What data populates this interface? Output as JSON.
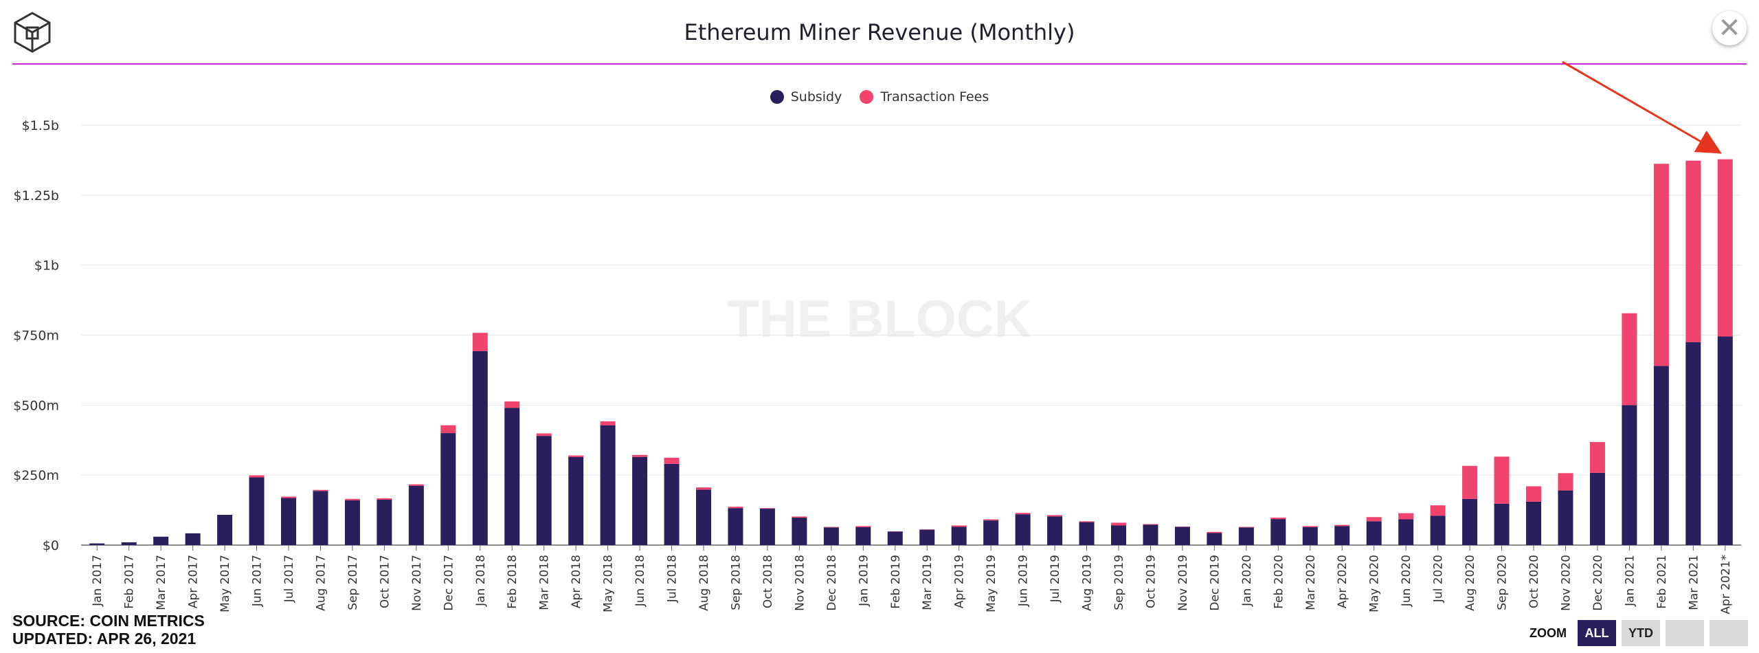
{
  "header": {
    "title": "Ethereum Miner Revenue (Monthly)",
    "close_symbol": "✕"
  },
  "colors": {
    "subsidy": "#2a1f5c",
    "fees": "#f0446e",
    "divider": "#c42ad8",
    "arrow": "#e8351f",
    "watermark": "#f0f0f0"
  },
  "watermark": "THE BLOCK",
  "footer": {
    "source": "SOURCE: COIN METRICS",
    "updated": "UPDATED: APR 26, 2021"
  },
  "zoom": {
    "label": "ZOOM",
    "buttons": [
      "ALL",
      "YTD",
      "",
      ""
    ],
    "active": "ALL"
  },
  "chart_data": {
    "type": "bar",
    "stacked": true,
    "title": "Ethereum Miner Revenue (Monthly)",
    "ylim": [
      0,
      1500
    ],
    "y_unit": "millions USD",
    "y_ticks": [
      0,
      250,
      500,
      750,
      1000,
      1250,
      1500
    ],
    "y_tick_labels": [
      "$0",
      "$250m",
      "$500m",
      "$750m",
      "$1b",
      "$1.25b",
      "$1.5b"
    ],
    "grid": true,
    "legend_position": "top-center",
    "categories": [
      "Jan 2017",
      "Feb 2017",
      "Mar 2017",
      "Apr 2017",
      "May 2017",
      "Jun 2017",
      "Jul 2017",
      "Aug 2017",
      "Sep 2017",
      "Oct 2017",
      "Nov 2017",
      "Dec 2017",
      "Jan 2018",
      "Feb 2018",
      "Mar 2018",
      "Apr 2018",
      "May 2018",
      "Jun 2018",
      "Jul 2018",
      "Aug 2018",
      "Sep 2018",
      "Oct 2018",
      "Nov 2018",
      "Dec 2018",
      "Jan 2019",
      "Feb 2019",
      "Mar 2019",
      "Apr 2019",
      "May 2019",
      "Jun 2019",
      "Jul 2019",
      "Aug 2019",
      "Sep 2019",
      "Oct 2019",
      "Nov 2019",
      "Dec 2019",
      "Jan 2020",
      "Feb 2020",
      "Mar 2020",
      "Apr 2020",
      "May 2020",
      "Jun 2020",
      "Jul 2020",
      "Aug 2020",
      "Sep 2020",
      "Oct 2020",
      "Nov 2020",
      "Dec 2020",
      "Jan 2021",
      "Feb 2021",
      "Mar 2021",
      "Apr 2021*"
    ],
    "series": [
      {
        "name": "Subsidy",
        "values": [
          6,
          10,
          30,
          42,
          108,
          242,
          168,
          193,
          160,
          162,
          212,
          400,
          693,
          490,
          390,
          315,
          428,
          315,
          290,
          198,
          132,
          130,
          98,
          63,
          64,
          48,
          55,
          65,
          88,
          110,
          102,
          82,
          70,
          73,
          65,
          43,
          63,
          93,
          64,
          68,
          85,
          92,
          105,
          165,
          148,
          155,
          195,
          258,
          500,
          640,
          725,
          745
        ]
      },
      {
        "name": "Transaction Fees",
        "values": [
          0,
          0,
          0,
          0,
          0,
          7,
          5,
          4,
          5,
          5,
          5,
          28,
          65,
          23,
          9,
          5,
          14,
          7,
          22,
          8,
          5,
          2,
          4,
          2,
          4,
          1,
          1,
          5,
          4,
          5,
          5,
          3,
          10,
          2,
          1,
          4,
          2,
          5,
          4,
          4,
          15,
          22,
          37,
          118,
          168,
          55,
          62,
          110,
          328,
          722,
          648,
          633
        ]
      }
    ]
  }
}
